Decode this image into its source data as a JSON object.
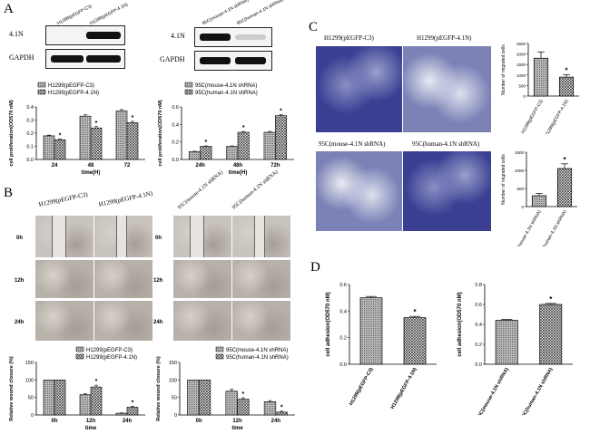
{
  "panels": {
    "A": "A",
    "B": "B",
    "C": "C",
    "D": "D"
  },
  "blot_left": {
    "lanes": [
      "H1299(pEGFP-C3)",
      "H1299(pEGFP-4.1N)"
    ],
    "row1": "4.1N",
    "row2": "GAPDH"
  },
  "blot_right": {
    "lanes": [
      "95C(mouse-4.1N shRNA)",
      "95C(human-4.1N shRNA)"
    ],
    "row1": "4.1N",
    "row2": "GAPDH"
  },
  "wound_left": {
    "headers": [
      "H1299(pEGFP-C3)",
      "H1299(pEGFP-4.1N)"
    ],
    "rows": [
      "0h",
      "12h",
      "24h"
    ]
  },
  "wound_right": {
    "headers": [
      "95C(mouse-4.1N shRNA)",
      "95C(human-4.1N shRNA)"
    ],
    "rows": [
      "0h",
      "12h",
      "24h"
    ]
  },
  "transwell_top": [
    "H1299(pEGFP-C3)",
    "H1299(pEGFP-4.1N)"
  ],
  "transwell_bottom": [
    "95C(mouse-4.1N shRNA)",
    "95C(human-4.1N shRNA)"
  ],
  "colors": {
    "light_bar": "#aaaaaa",
    "dark_bar": "#555555",
    "cell_stain": "#3a3f92"
  },
  "chart_data": [
    {
      "id": "A-left",
      "type": "bar",
      "ylabel": "cell proliferation(OD570 nM)",
      "xlabel": "time(H)",
      "categories": [
        "24",
        "48",
        "72"
      ],
      "legend": [
        "H1299(pEGFP-C3)",
        "H1299(pEGFP-4.1N)"
      ],
      "series": [
        {
          "name": "H1299(pEGFP-C3)",
          "values": [
            0.18,
            0.33,
            0.37
          ],
          "err": [
            0.005,
            0.01,
            0.01
          ]
        },
        {
          "name": "H1299(pEGFP-4.1N)",
          "values": [
            0.15,
            0.24,
            0.28
          ],
          "err": [
            0.005,
            0.01,
            0.01
          ]
        }
      ],
      "stars": [
        "*",
        "*",
        "*"
      ],
      "ylim": [
        0,
        0.4
      ],
      "yticks": [
        "0.0",
        "0.1",
        "0.2",
        "0.3",
        "0.4"
      ]
    },
    {
      "id": "A-right",
      "type": "bar",
      "ylabel": "cell proliferation(OD570 nM)",
      "xlabel": "time(H)",
      "categories": [
        "24h",
        "48h",
        "72h"
      ],
      "legend": [
        "95C(mouse-4.1N shRNA)",
        "95C(human-4.1N shRNA)"
      ],
      "series": [
        {
          "name": "95C(mouse-4.1N shRNA)",
          "values": [
            0.09,
            0.15,
            0.31
          ],
          "err": [
            0.005,
            0.005,
            0.01
          ]
        },
        {
          "name": "95C(human-4.1N shRNA)",
          "values": [
            0.15,
            0.31,
            0.5
          ],
          "err": [
            0.005,
            0.01,
            0.01
          ]
        }
      ],
      "stars": [
        "*",
        "*",
        "*"
      ],
      "ylim": [
        0,
        0.6
      ],
      "yticks": [
        "0.0",
        "0.2",
        "0.4",
        "0.6"
      ]
    },
    {
      "id": "B-left",
      "type": "bar",
      "ylabel": "Relative wound closure (%)",
      "xlabel": "time",
      "categories": [
        "0h",
        "12h",
        "24h"
      ],
      "legend": [
        "H1299(pEGFP-C3)",
        "H1299(pEGFP-4.1N)"
      ],
      "series": [
        {
          "name": "H1299(pEGFP-C3)",
          "values": [
            100,
            58,
            5
          ],
          "err": [
            0,
            3,
            1
          ]
        },
        {
          "name": "H1299(pEGFP-4.1N)",
          "values": [
            100,
            80,
            22
          ],
          "err": [
            0,
            5,
            3
          ]
        }
      ],
      "stars": [
        "",
        "*",
        "*"
      ],
      "ylim": [
        0,
        150
      ],
      "yticks": [
        "0",
        "50",
        "100",
        "150"
      ]
    },
    {
      "id": "B-right",
      "type": "bar",
      "ylabel": "Relative wound closure (%)",
      "xlabel": "time",
      "categories": [
        "0h",
        "12h",
        "24h"
      ],
      "legend": [
        "95C(mouse-4.1N shRNA)",
        "95C(human-4.1N shRNA)"
      ],
      "series": [
        {
          "name": "95C(mouse-4.1N shRNA)",
          "values": [
            100,
            68,
            38
          ],
          "err": [
            0,
            6,
            3
          ]
        },
        {
          "name": "95C(human-4.1N shRNA)",
          "values": [
            100,
            45,
            8
          ],
          "err": [
            0,
            4,
            3
          ]
        }
      ],
      "stars": [
        "",
        "*",
        "*"
      ],
      "ylim": [
        0,
        150
      ],
      "yticks": [
        "0",
        "50",
        "100",
        "150"
      ]
    },
    {
      "id": "C-top",
      "type": "bar",
      "ylabel": "Number of migrated cells",
      "categories": [
        "H1299(pEGFP-C3)",
        "H1299(pEGFP-4.1N)"
      ],
      "values": [
        1800,
        900
      ],
      "err": [
        300,
        120
      ],
      "stars": [
        "",
        "*"
      ],
      "ylim": [
        0,
        2500
      ],
      "yticks": [
        "0",
        "500",
        "1000",
        "1500",
        "2000",
        "2500"
      ]
    },
    {
      "id": "C-bottom",
      "type": "bar",
      "ylabel": "Number of migrated cells",
      "categories": [
        "95C(mouse-4.1N shRNA)",
        "95C(human-4.1N shRNA)"
      ],
      "values": [
        300,
        1050
      ],
      "err": [
        60,
        130
      ],
      "stars": [
        "",
        "*"
      ],
      "ylim": [
        0,
        1500
      ],
      "yticks": [
        "0",
        "500",
        "1000",
        "1500"
      ]
    },
    {
      "id": "D-left",
      "type": "bar",
      "ylabel": "cell adhesion(OD570 nM)",
      "categories": [
        "H1299(pEGFP-C3)",
        "H1299(pEGFP-4.1N)"
      ],
      "values": [
        0.5,
        0.35
      ],
      "err": [
        0.01,
        0.01
      ],
      "stars": [
        "",
        "*"
      ],
      "ylim": [
        0,
        0.6
      ],
      "yticks": [
        "0.0",
        "0.2",
        "0.4",
        "0.6"
      ]
    },
    {
      "id": "D-right",
      "type": "bar",
      "ylabel": "cell adhesion(OD570 nM)",
      "categories": [
        "95C(mouse-4.1N shRNA)",
        "95C(human-4.1N shRNA)"
      ],
      "values": [
        0.44,
        0.6
      ],
      "err": [
        0.01,
        0.01
      ],
      "stars": [
        "",
        "*"
      ],
      "ylim": [
        0,
        0.8
      ],
      "yticks": [
        "0.0",
        "0.2",
        "0.4",
        "0.6",
        "0.8"
      ]
    }
  ]
}
